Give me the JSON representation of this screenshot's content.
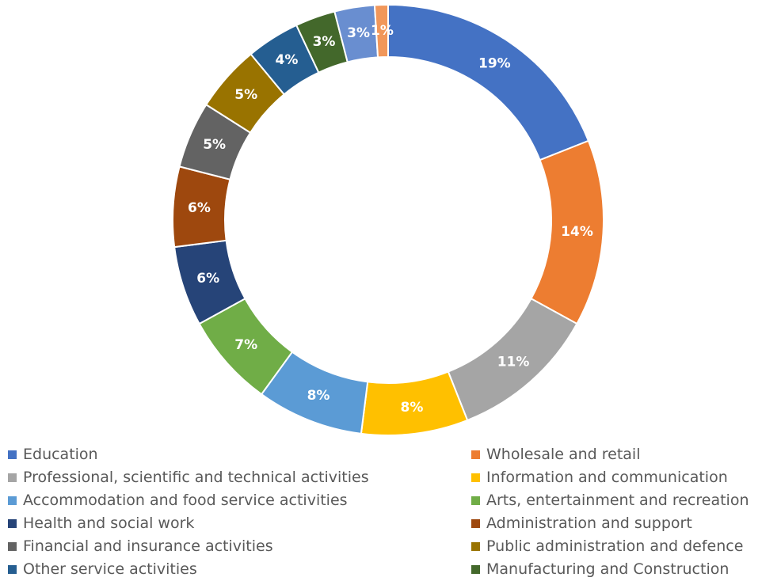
{
  "chart_data": {
    "type": "pie",
    "style": "donut",
    "legend_position": "bottom",
    "categories": [
      "Education",
      "Wholesale and retail",
      "Professional, scientific and technical activities",
      "Information and communication",
      "Accommodation and food service activities",
      "Arts, entertainment and recreation",
      "Health and social work",
      "Administration and support",
      "Financial and insurance activities",
      "Public administration and defence",
      "Other service activities",
      "Manufacturing and Construction",
      "",
      ""
    ],
    "values": [
      19,
      14,
      11,
      8,
      8,
      7,
      6,
      6,
      5,
      5,
      4,
      3,
      3,
      1
    ],
    "data_labels": [
      "19%",
      "14%",
      "11%",
      "8%",
      "8%",
      "7%",
      "6%",
      "6%",
      "5%",
      "5%",
      "4%",
      "3%",
      "3%",
      "1%"
    ],
    "colors": [
      "#4472C4",
      "#ED7D31",
      "#A5A5A5",
      "#FFC000",
      "#5B9BD5",
      "#70AD47",
      "#264478",
      "#9E480E",
      "#636363",
      "#997300",
      "#255E91",
      "#43682B",
      "#698ED0",
      "#F1975A"
    ]
  }
}
